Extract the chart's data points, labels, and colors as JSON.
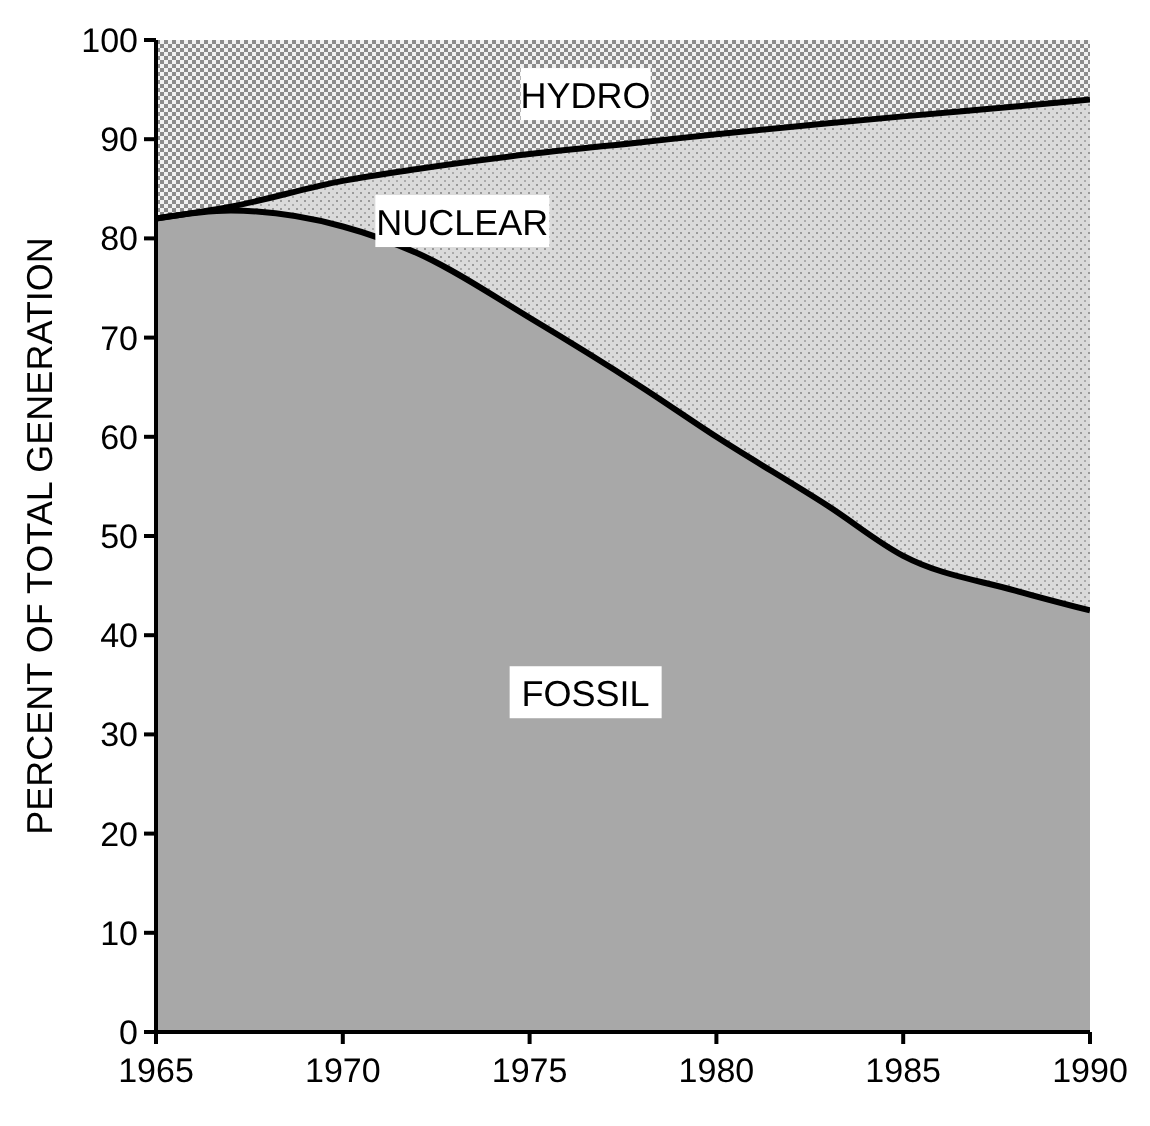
{
  "chart_data": {
    "type": "area",
    "stacked": true,
    "ylabel": "PERCENT OF TOTAL GENERATION",
    "x": [
      1965,
      1967,
      1970,
      1972,
      1975,
      1978,
      1980,
      1983,
      1985,
      1988,
      1990
    ],
    "series": [
      {
        "name": "FOSSIL",
        "color": "#a8a8a8",
        "values": [
          82,
          82.8,
          81.2,
          78.5,
          72,
          65,
          60,
          53,
          48,
          44.5,
          42.5
        ]
      },
      {
        "name": "NUCLEAR",
        "color": "#dadada",
        "values": [
          0,
          0.4,
          4.6,
          8.5,
          16.5,
          24.7,
          30.5,
          38.6,
          44.3,
          48.8,
          51.5
        ]
      },
      {
        "name": "HYDRO",
        "color": "#8c8c8c",
        "values": [
          18,
          16.8,
          14.2,
          13,
          11.5,
          10.3,
          9.5,
          8.4,
          7.7,
          6.7,
          6
        ]
      }
    ],
    "xlim": [
      1965,
      1990
    ],
    "xticks": [
      1965,
      1970,
      1975,
      1980,
      1985,
      1990
    ],
    "ylim": [
      0,
      100
    ],
    "yticks": [
      0,
      10,
      20,
      30,
      40,
      50,
      60,
      70,
      80,
      90,
      100
    ],
    "grid": false
  }
}
